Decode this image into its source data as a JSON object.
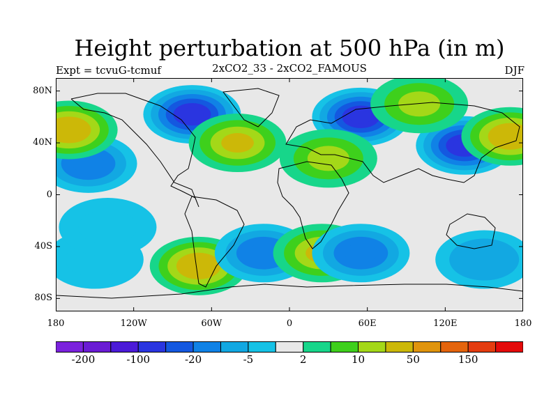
{
  "header": {
    "title": "Height perturbation at 500 hPa (in m)",
    "experiment": "Expt = tcvuG-tcmuf",
    "comparison": "2xCO2_33 - 2xCO2_FAMOUS",
    "season": "DJF"
  },
  "axes": {
    "lat_ticks": [
      "80N",
      "40N",
      "0",
      "40S",
      "80S"
    ],
    "lat_values": [
      80,
      40,
      0,
      -40,
      -80
    ],
    "lon_ticks": [
      "180",
      "120W",
      "60W",
      "0",
      "60E",
      "120E",
      "180"
    ],
    "lon_values": [
      -180,
      -120,
      -60,
      0,
      60,
      120,
      180
    ]
  },
  "colorbar": {
    "colors": [
      "#7b22dd",
      "#6a1bd4",
      "#4b1ad8",
      "#2a35e0",
      "#1458e0",
      "#1082e6",
      "#12a8e2",
      "#16c2e6",
      "#e8e8e8",
      "#17d68a",
      "#3ed01c",
      "#a4d818",
      "#ccb808",
      "#e0940c",
      "#e4640c",
      "#e43c10",
      "#e40a0a"
    ],
    "tick_labels": [
      "-200",
      "-100",
      "-20",
      "-5",
      "2",
      "10",
      "50",
      "150"
    ]
  },
  "chart_data": {
    "type": "heatmap",
    "title": "Height perturbation at 500 hPa (in m)",
    "lon_range": [
      -180,
      180
    ],
    "lat_range": [
      -90,
      90
    ],
    "anomalies": [
      {
        "lon": -75,
        "lat": 62,
        "value": -100
      },
      {
        "lon": 55,
        "lat": 60,
        "value": -100
      },
      {
        "lon": 135,
        "lat": 38,
        "value": -100
      },
      {
        "lon": -155,
        "lat": 24,
        "value": -20
      },
      {
        "lon": -40,
        "lat": 40,
        "value": 20
      },
      {
        "lon": 30,
        "lat": 28,
        "value": 10
      },
      {
        "lon": 170,
        "lat": 45,
        "value": 40
      },
      {
        "lon": -170,
        "lat": 50,
        "value": 40
      },
      {
        "lon": 100,
        "lat": 70,
        "value": 10
      },
      {
        "lon": -70,
        "lat": -55,
        "value": 30
      },
      {
        "lon": -20,
        "lat": -45,
        "value": -20
      },
      {
        "lon": 25,
        "lat": -45,
        "value": 20
      },
      {
        "lon": 55,
        "lat": -45,
        "value": -15
      },
      {
        "lon": 150,
        "lat": -50,
        "value": -10
      },
      {
        "lon": -150,
        "lat": -50,
        "value": -5
      },
      {
        "lon": -140,
        "lat": -25,
        "value": -5
      }
    ]
  }
}
